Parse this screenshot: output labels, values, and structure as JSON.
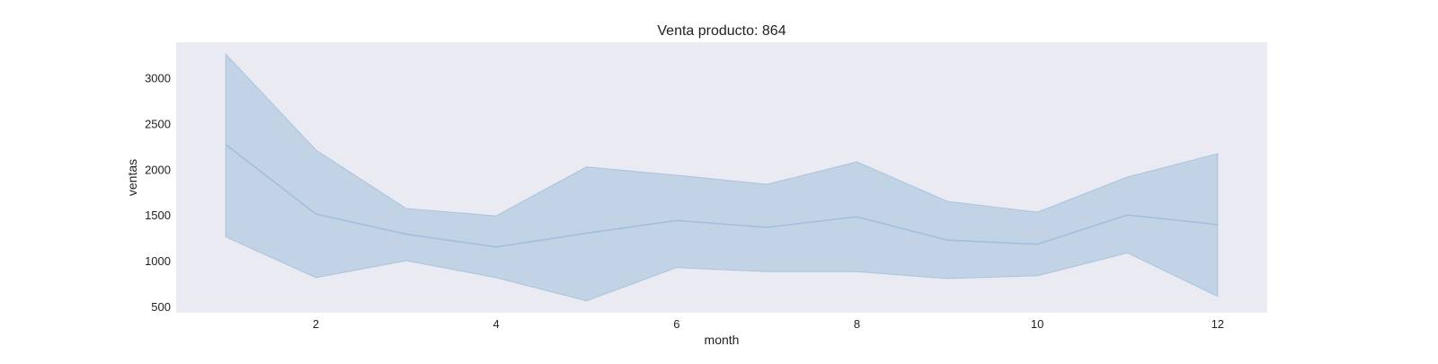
{
  "chart_data": {
    "type": "line",
    "title": "Venta producto: 864",
    "xlabel": "month",
    "ylabel": "ventas",
    "x": [
      1,
      2,
      3,
      4,
      5,
      6,
      7,
      8,
      9,
      10,
      11,
      12
    ],
    "series": [
      {
        "values": [
          2270,
          1510,
          1290,
          1150,
          1300,
          1440,
          1365,
          1480,
          1225,
          1180,
          1500,
          1395
        ],
        "band_upper": [
          3260,
          2210,
          1570,
          1490,
          2025,
          1935,
          1835,
          2080,
          1650,
          1530,
          1915,
          2170
        ],
        "band_lower": [
          1260,
          815,
          1000,
          815,
          560,
          925,
          880,
          880,
          805,
          835,
          1085,
          610
        ]
      }
    ],
    "xticks": [
      2,
      4,
      6,
      8,
      10,
      12
    ],
    "yticks": [
      500,
      1000,
      1500,
      2000,
      2500,
      3000
    ],
    "xlim": [
      0.45,
      12.55
    ],
    "ylim": [
      430,
      3390
    ],
    "grid": false,
    "colors": {
      "plot_background": "#eaeaf2",
      "line": "#a3bfdc",
      "band_fill": "#c2d3e5",
      "band_edge": "#a9c3dd"
    }
  }
}
